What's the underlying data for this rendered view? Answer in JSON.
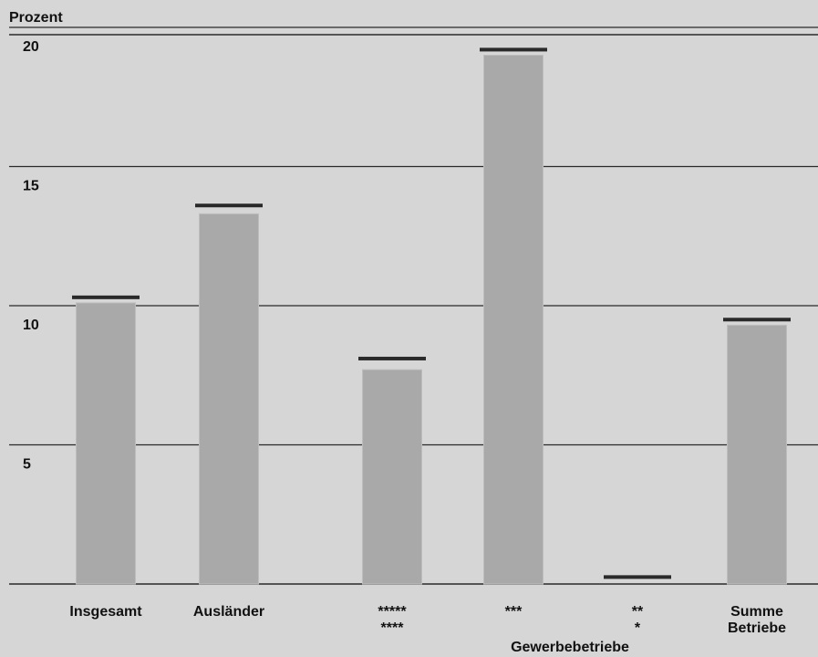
{
  "chart_data": {
    "type": "bar",
    "ylabel": "Prozent",
    "ylim": [
      0,
      21
    ],
    "yticks": [
      5,
      10,
      15,
      20
    ],
    "group_label": "Gewerbebetriebe",
    "categories": [
      {
        "label_lines": [
          "Insgesamt"
        ],
        "value": 10.1,
        "line": 10.3
      },
      {
        "label_lines": [
          "Ausländer"
        ],
        "value": 13.3,
        "line": 13.6
      },
      {
        "label_lines": [
          "*****",
          "****"
        ],
        "value": 7.7,
        "line": 8.1
      },
      {
        "label_lines": [
          "***"
        ],
        "value": 19.0,
        "line": 19.2
      },
      {
        "label_lines": [
          "**",
          "*"
        ],
        "value": 0.0,
        "line": 0.25
      },
      {
        "label_lines": [
          "Summe",
          "Betriebe"
        ],
        "value": 9.3,
        "line": 9.5
      }
    ],
    "grid": true,
    "colors": {
      "bar": "#a9a9a9",
      "bar_edge": "#bdbdbd",
      "line": "#2a2a2a",
      "gridline": "#2a2a2a",
      "background": "#d6d6d6"
    }
  }
}
